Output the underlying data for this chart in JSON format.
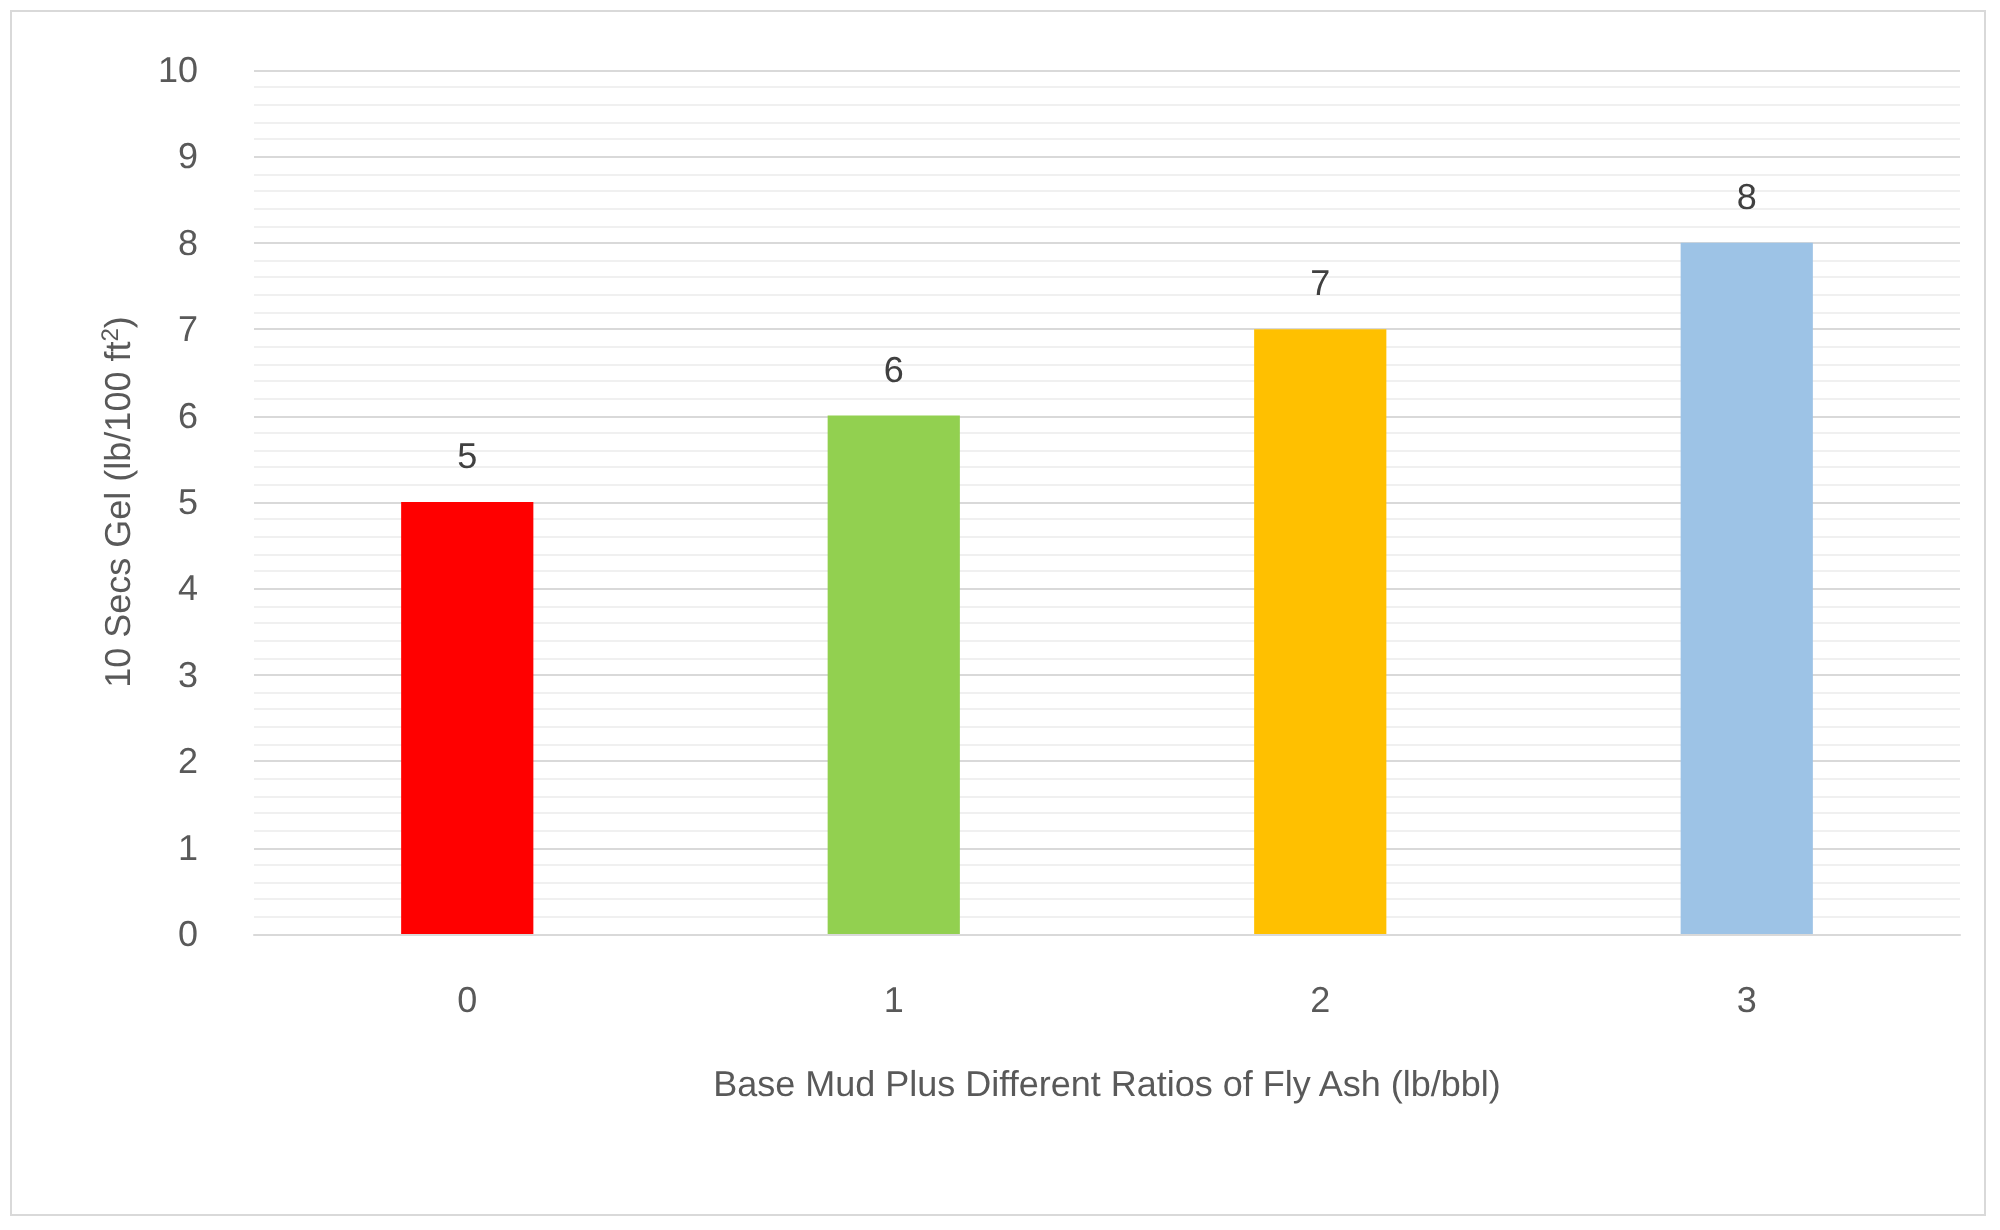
{
  "chart_data": {
    "type": "bar",
    "xlabel": "Base Mud Plus Different Ratios of Fly Ash (lb/bbl)",
    "ylabel": "10 Secs Gel (lb/100 ft$^{2}$)",
    "categories": [
      "0",
      "1",
      "2",
      "3"
    ],
    "values": [
      5,
      6,
      7,
      8
    ],
    "colors": [
      "#ff0000",
      "#92d050",
      "#ffc000",
      "#9dc3e6"
    ],
    "ylim": [
      0,
      10
    ],
    "yticks": [
      0,
      1,
      2,
      3,
      4,
      5,
      6,
      7,
      8,
      9,
      10
    ],
    "grid": "y",
    "data_labels": true
  }
}
